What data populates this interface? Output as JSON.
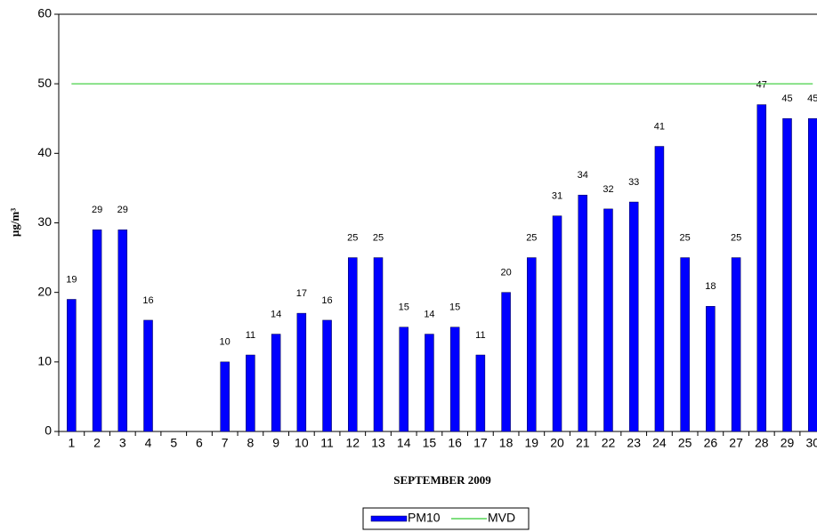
{
  "chart_data": {
    "type": "bar",
    "x_label": "SEPTEMBER 2009",
    "y_label": "µg/m³",
    "categories": [
      "1",
      "2",
      "3",
      "4",
      "5",
      "6",
      "7",
      "8",
      "9",
      "10",
      "11",
      "12",
      "13",
      "14",
      "15",
      "16",
      "17",
      "18",
      "19",
      "20",
      "21",
      "22",
      "23",
      "24",
      "25",
      "26",
      "27",
      "28",
      "29",
      "30"
    ],
    "series": [
      {
        "name": "PM10",
        "type": "bar",
        "color": "#0000ff",
        "values": [
          19,
          29,
          29,
          16,
          null,
          null,
          10,
          11,
          14,
          17,
          16,
          25,
          25,
          15,
          14,
          15,
          11,
          20,
          25,
          31,
          34,
          32,
          33,
          41,
          25,
          18,
          25,
          47,
          45,
          45
        ]
      },
      {
        "name": "MVD",
        "type": "line",
        "color": "#33cc33",
        "values": [
          50,
          50,
          50,
          50,
          50,
          50,
          50,
          50,
          50,
          50,
          50,
          50,
          50,
          50,
          50,
          50,
          50,
          50,
          50,
          50,
          50,
          50,
          50,
          50,
          50,
          50,
          50,
          50,
          50,
          50
        ]
      }
    ],
    "ylim": [
      0,
      60
    ],
    "yticks": [
      0,
      10,
      20,
      30,
      40,
      50,
      60
    ],
    "legend": "bottom"
  }
}
